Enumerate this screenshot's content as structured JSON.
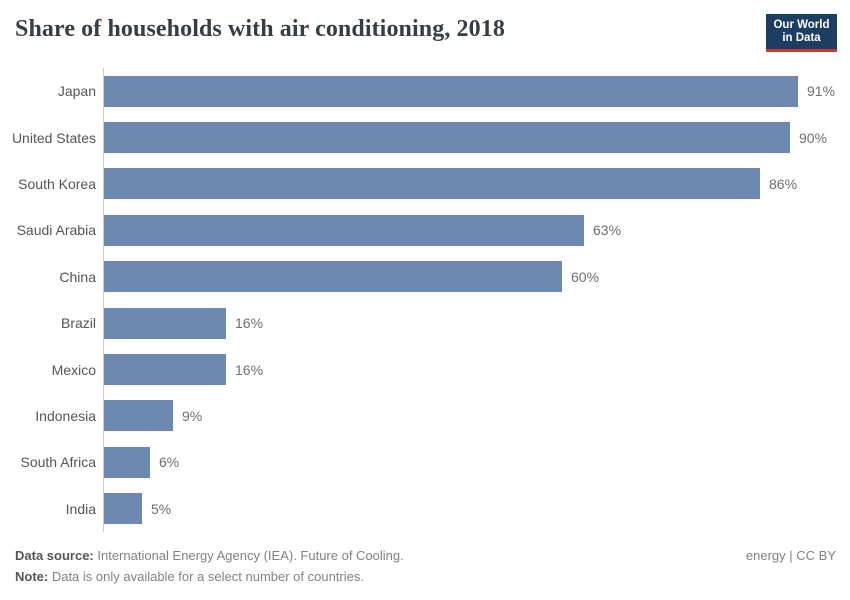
{
  "header": {
    "title": "Share of households with air conditioning, 2018",
    "logo": {
      "line1": "Our World",
      "line2": "in Data"
    }
  },
  "chart_data": {
    "type": "bar",
    "orientation": "horizontal",
    "title": "Share of households with air conditioning, 2018",
    "categories": [
      "Japan",
      "United States",
      "South Korea",
      "Saudi Arabia",
      "China",
      "Brazil",
      "Mexico",
      "Indonesia",
      "South Africa",
      "India"
    ],
    "values": [
      91,
      90,
      86,
      63,
      60,
      16,
      16,
      9,
      6,
      5
    ],
    "value_suffix": "%",
    "xlim": [
      0,
      91
    ],
    "grid": false,
    "legend": "none",
    "bar_color": "#6e89b1",
    "axis_line_color": "#cccccc"
  },
  "footer": {
    "datasource_label": "Data source:",
    "datasource_text": " International Energy Agency (IEA). Future of Cooling.",
    "note_label": "Note:",
    "note_text": " Data is only available for a select number of countries.",
    "license": "energy | CC BY"
  },
  "colors": {
    "bar": "#6e89b1",
    "logo_background": "#1d3d63",
    "logo_accent_red": "#c5392f",
    "title_text": "#373d42",
    "label_text": "#555555",
    "value_text": "#6e6e6e"
  }
}
